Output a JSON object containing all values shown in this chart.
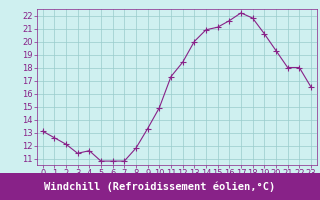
{
  "x": [
    0,
    1,
    2,
    3,
    4,
    5,
    6,
    7,
    8,
    9,
    10,
    11,
    12,
    13,
    14,
    15,
    16,
    17,
    18,
    19,
    20,
    21,
    22,
    23
  ],
  "y": [
    13.1,
    12.6,
    12.1,
    11.4,
    11.6,
    10.8,
    10.8,
    10.8,
    11.8,
    13.3,
    14.9,
    17.3,
    18.4,
    20.0,
    20.9,
    21.1,
    21.6,
    22.2,
    21.8,
    20.6,
    19.3,
    18.0,
    18.0,
    16.5
  ],
  "line_color": "#882288",
  "marker": "+",
  "marker_size": 4,
  "background_color": "#cff0f0",
  "grid_color": "#99cccc",
  "xlabel": "Windchill (Refroidissement éolien,°C)",
  "xlabel_color": "#ffffff",
  "xlabel_bg": "#882288",
  "xlim": [
    -0.5,
    23.5
  ],
  "ylim": [
    10.5,
    22.5
  ],
  "yticks": [
    11,
    12,
    13,
    14,
    15,
    16,
    17,
    18,
    19,
    20,
    21,
    22
  ],
  "xticks": [
    0,
    1,
    2,
    3,
    4,
    5,
    6,
    7,
    8,
    9,
    10,
    11,
    12,
    13,
    14,
    15,
    16,
    17,
    18,
    19,
    20,
    21,
    22,
    23
  ],
  "tick_label_color": "#882288",
  "tick_label_size": 6,
  "xlabel_fontsize": 7.5,
  "spine_color": "#882288"
}
